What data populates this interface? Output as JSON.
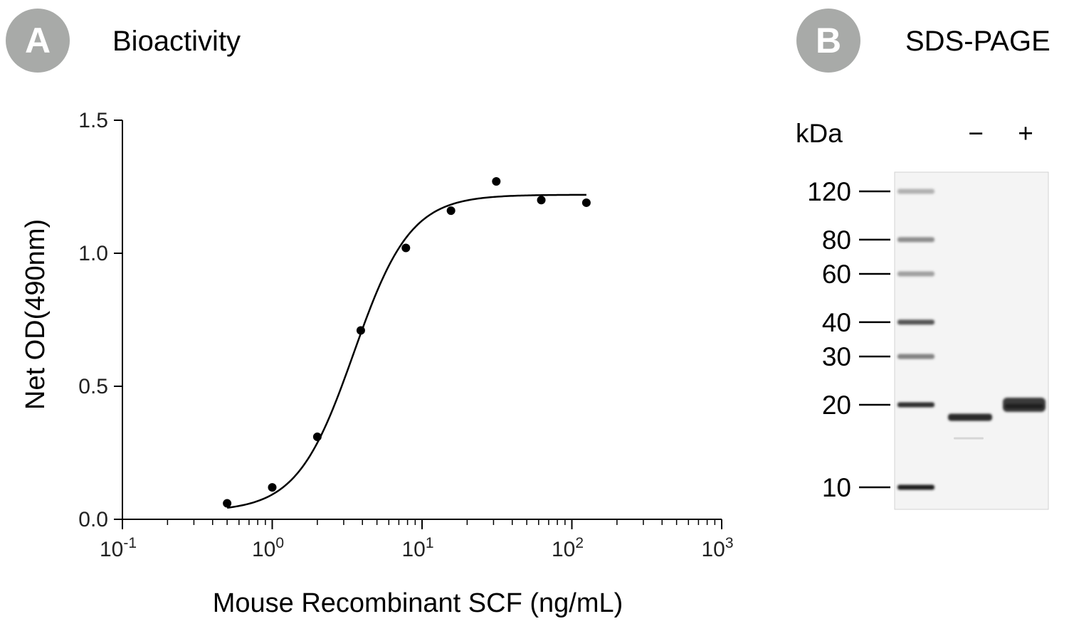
{
  "panel_a": {
    "badge": "A",
    "title": "Bioactivity"
  },
  "panel_b": {
    "badge": "B",
    "title": "SDS-PAGE"
  },
  "chart_data": [
    {
      "type": "scatter",
      "xlabel": "Mouse Recombinant SCF (ng/mL)",
      "ylabel": "Net OD(490nm)",
      "xscale": "log",
      "xlim": [
        0.1,
        1000
      ],
      "ylim": [
        0,
        1.5
      ],
      "x_ticks": [
        {
          "base": "10",
          "exp": "-1"
        },
        {
          "base": "10",
          "exp": "0"
        },
        {
          "base": "10",
          "exp": "1"
        },
        {
          "base": "10",
          "exp": "2"
        },
        {
          "base": "10",
          "exp": "3"
        }
      ],
      "y_ticks": [
        "0.0",
        "0.5",
        "1.0",
        "1.5"
      ],
      "points": [
        {
          "x": 0.5,
          "y": 0.06
        },
        {
          "x": 1.0,
          "y": 0.12
        },
        {
          "x": 2.0,
          "y": 0.31
        },
        {
          "x": 3.9,
          "y": 0.71
        },
        {
          "x": 7.8,
          "y": 1.02
        },
        {
          "x": 15.6,
          "y": 1.16
        },
        {
          "x": 31.3,
          "y": 1.27
        },
        {
          "x": 62.5,
          "y": 1.2
        },
        {
          "x": 125,
          "y": 1.19
        }
      ],
      "fit": {
        "type": "4PL",
        "bottom": 0.03,
        "top": 1.22,
        "ec50": 3.5,
        "hill": 2.3,
        "x_range": [
          0.5,
          125
        ]
      },
      "grid": false,
      "legend": "none"
    },
    {
      "type": "gel",
      "unit_label": "kDa",
      "lane_labels": [
        "−",
        "+"
      ],
      "marker_labels": [
        "120",
        "80",
        "60",
        "40",
        "30",
        "20",
        "10"
      ],
      "marker_kda": [
        120,
        80,
        60,
        40,
        30,
        20,
        10
      ],
      "marker_intensity": [
        0.35,
        0.55,
        0.45,
        0.8,
        0.6,
        0.95,
        1.0
      ],
      "sample_bands": [
        {
          "lane": "−",
          "kda": 18
        },
        {
          "lane": "+",
          "kda": 20
        }
      ]
    }
  ]
}
